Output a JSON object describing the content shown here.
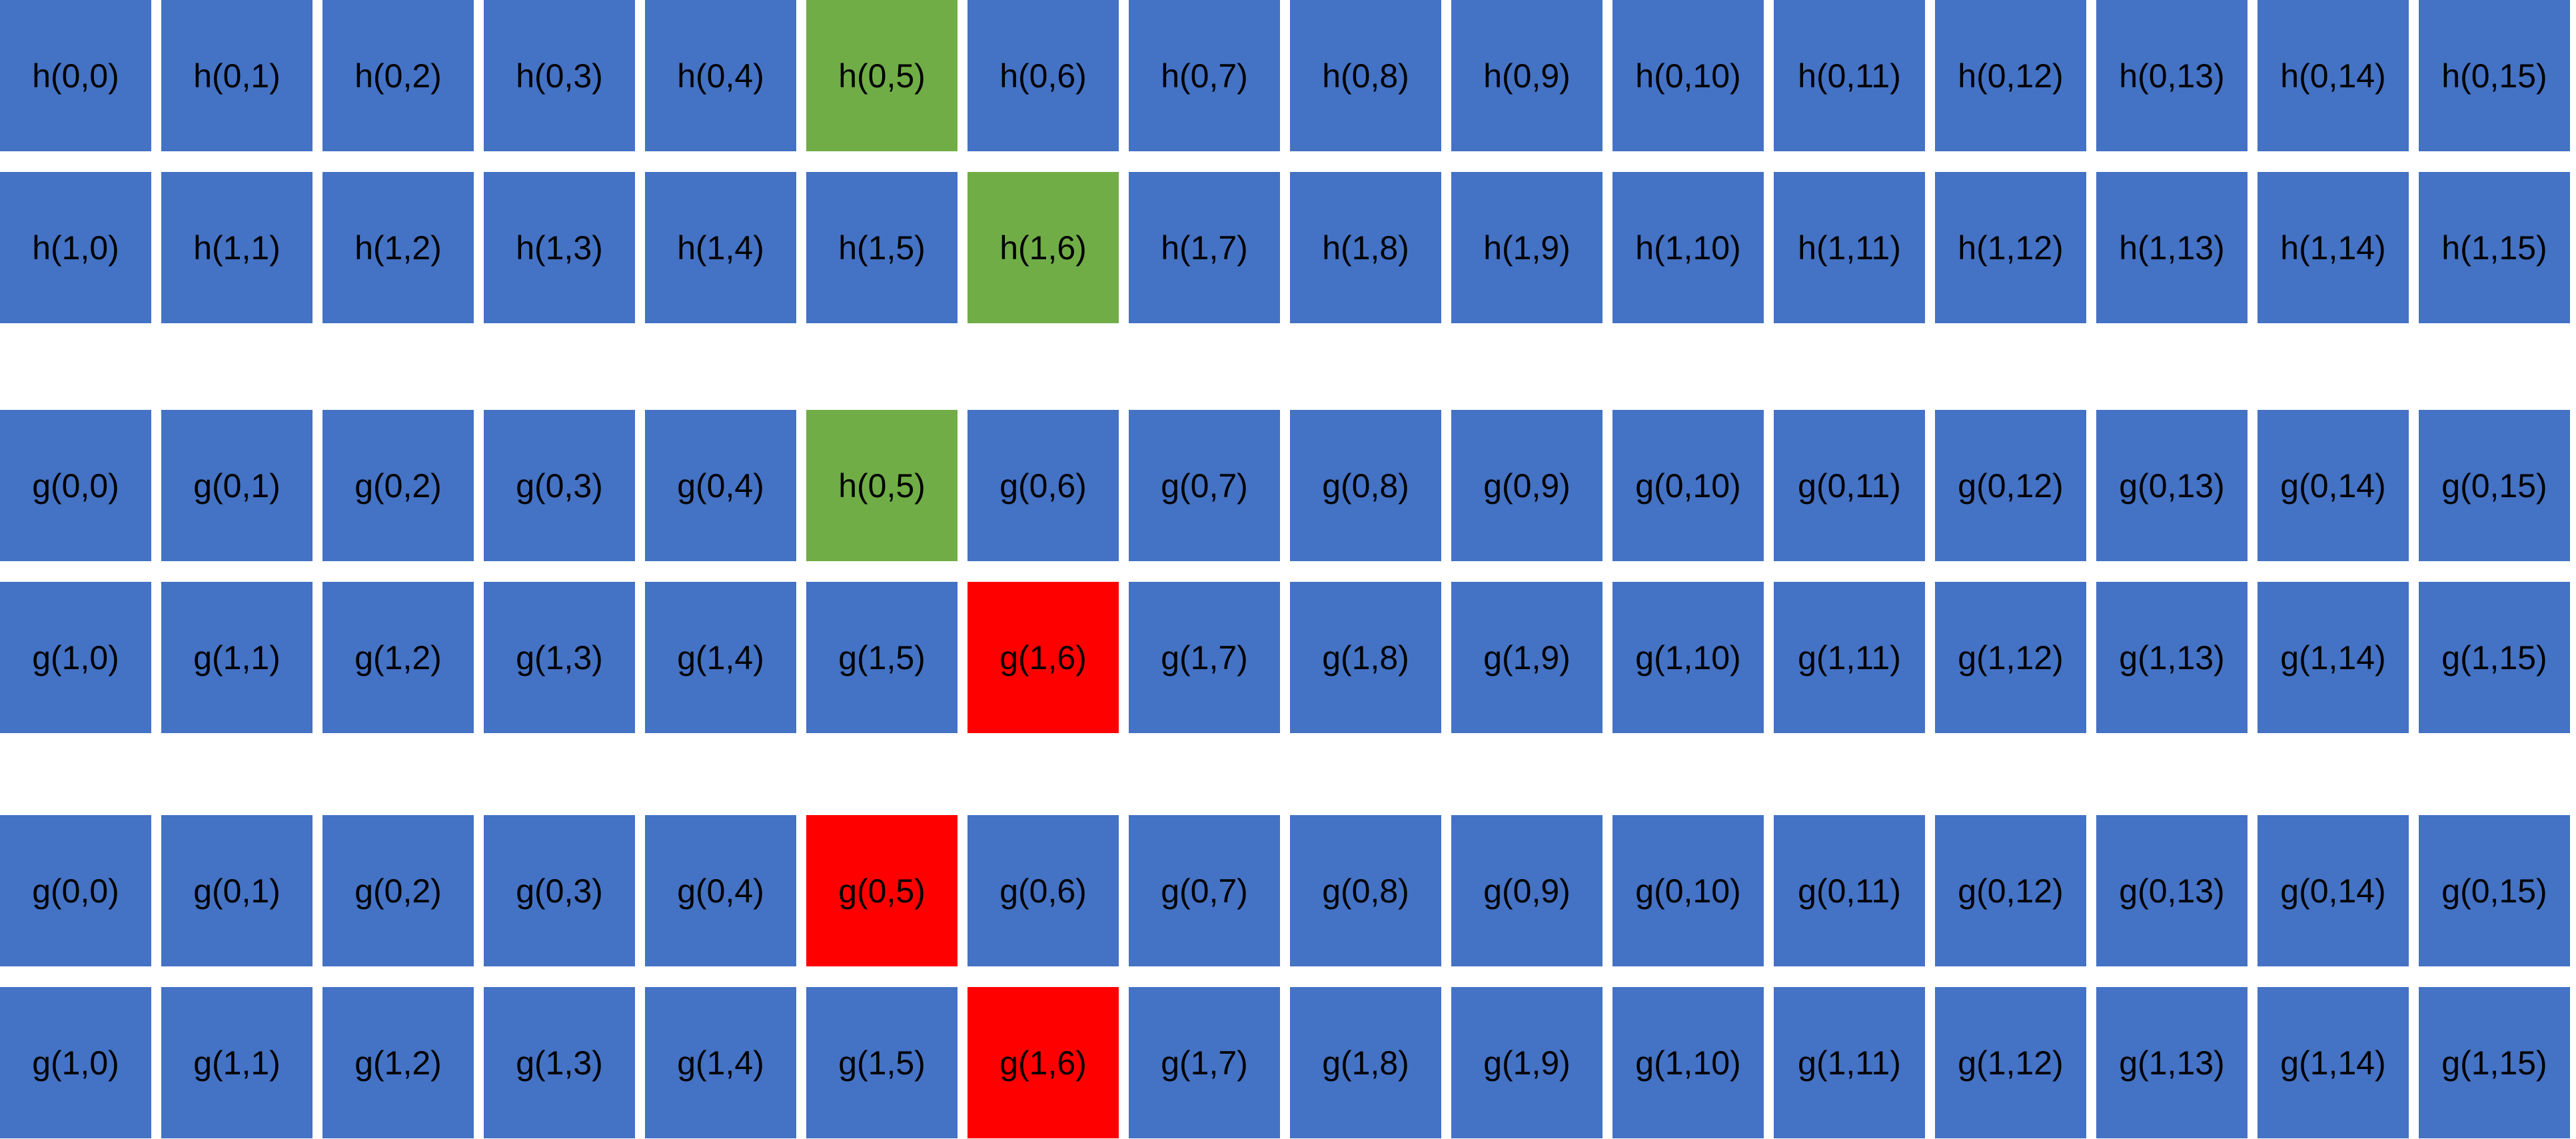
{
  "colors": {
    "default": "#4472C4",
    "green": "#70AD47",
    "red": "#FF0000",
    "text": "#000000",
    "background": "#FFFFFF"
  },
  "blocks": [
    {
      "rows": [
        {
          "cells": [
            {
              "label": "h(0,0)",
              "color": "default"
            },
            {
              "label": "h(0,1)",
              "color": "default"
            },
            {
              "label": "h(0,2)",
              "color": "default"
            },
            {
              "label": "h(0,3)",
              "color": "default"
            },
            {
              "label": "h(0,4)",
              "color": "default"
            },
            {
              "label": "h(0,5)",
              "color": "green"
            },
            {
              "label": "h(0,6)",
              "color": "default"
            },
            {
              "label": "h(0,7)",
              "color": "default"
            },
            {
              "label": "h(0,8)",
              "color": "default"
            },
            {
              "label": "h(0,9)",
              "color": "default"
            },
            {
              "label": "h(0,10)",
              "color": "default"
            },
            {
              "label": "h(0,11)",
              "color": "default"
            },
            {
              "label": "h(0,12)",
              "color": "default"
            },
            {
              "label": "h(0,13)",
              "color": "default"
            },
            {
              "label": "h(0,14)",
              "color": "default"
            },
            {
              "label": "h(0,15)",
              "color": "default"
            }
          ]
        },
        {
          "cells": [
            {
              "label": "h(1,0)",
              "color": "default"
            },
            {
              "label": "h(1,1)",
              "color": "default"
            },
            {
              "label": "h(1,2)",
              "color": "default"
            },
            {
              "label": "h(1,3)",
              "color": "default"
            },
            {
              "label": "h(1,4)",
              "color": "default"
            },
            {
              "label": "h(1,5)",
              "color": "default"
            },
            {
              "label": "h(1,6)",
              "color": "green"
            },
            {
              "label": "h(1,7)",
              "color": "default"
            },
            {
              "label": "h(1,8)",
              "color": "default"
            },
            {
              "label": "h(1,9)",
              "color": "default"
            },
            {
              "label": "h(1,10)",
              "color": "default"
            },
            {
              "label": "h(1,11)",
              "color": "default"
            },
            {
              "label": "h(1,12)",
              "color": "default"
            },
            {
              "label": "h(1,13)",
              "color": "default"
            },
            {
              "label": "h(1,14)",
              "color": "default"
            },
            {
              "label": "h(1,15)",
              "color": "default"
            }
          ]
        }
      ]
    },
    {
      "rows": [
        {
          "cells": [
            {
              "label": "g(0,0)",
              "color": "default"
            },
            {
              "label": "g(0,1)",
              "color": "default"
            },
            {
              "label": "g(0,2)",
              "color": "default"
            },
            {
              "label": "g(0,3)",
              "color": "default"
            },
            {
              "label": "g(0,4)",
              "color": "default"
            },
            {
              "label": "h(0,5)",
              "color": "green"
            },
            {
              "label": "g(0,6)",
              "color": "default"
            },
            {
              "label": "g(0,7)",
              "color": "default"
            },
            {
              "label": "g(0,8)",
              "color": "default"
            },
            {
              "label": "g(0,9)",
              "color": "default"
            },
            {
              "label": "g(0,10)",
              "color": "default"
            },
            {
              "label": "g(0,11)",
              "color": "default"
            },
            {
              "label": "g(0,12)",
              "color": "default"
            },
            {
              "label": "g(0,13)",
              "color": "default"
            },
            {
              "label": "g(0,14)",
              "color": "default"
            },
            {
              "label": "g(0,15)",
              "color": "default"
            }
          ]
        },
        {
          "cells": [
            {
              "label": "g(1,0)",
              "color": "default"
            },
            {
              "label": "g(1,1)",
              "color": "default"
            },
            {
              "label": "g(1,2)",
              "color": "default"
            },
            {
              "label": "g(1,3)",
              "color": "default"
            },
            {
              "label": "g(1,4)",
              "color": "default"
            },
            {
              "label": "g(1,5)",
              "color": "default"
            },
            {
              "label": "g(1,6)",
              "color": "red"
            },
            {
              "label": "g(1,7)",
              "color": "default"
            },
            {
              "label": "g(1,8)",
              "color": "default"
            },
            {
              "label": "g(1,9)",
              "color": "default"
            },
            {
              "label": "g(1,10)",
              "color": "default"
            },
            {
              "label": "g(1,11)",
              "color": "default"
            },
            {
              "label": "g(1,12)",
              "color": "default"
            },
            {
              "label": "g(1,13)",
              "color": "default"
            },
            {
              "label": "g(1,14)",
              "color": "default"
            },
            {
              "label": "g(1,15)",
              "color": "default"
            }
          ]
        }
      ]
    },
    {
      "rows": [
        {
          "cells": [
            {
              "label": "g(0,0)",
              "color": "default"
            },
            {
              "label": "g(0,1)",
              "color": "default"
            },
            {
              "label": "g(0,2)",
              "color": "default"
            },
            {
              "label": "g(0,3)",
              "color": "default"
            },
            {
              "label": "g(0,4)",
              "color": "default"
            },
            {
              "label": "g(0,5)",
              "color": "red"
            },
            {
              "label": "g(0,6)",
              "color": "default"
            },
            {
              "label": "g(0,7)",
              "color": "default"
            },
            {
              "label": "g(0,8)",
              "color": "default"
            },
            {
              "label": "g(0,9)",
              "color": "default"
            },
            {
              "label": "g(0,10)",
              "color": "default"
            },
            {
              "label": "g(0,11)",
              "color": "default"
            },
            {
              "label": "g(0,12)",
              "color": "default"
            },
            {
              "label": "g(0,13)",
              "color": "default"
            },
            {
              "label": "g(0,14)",
              "color": "default"
            },
            {
              "label": "g(0,15)",
              "color": "default"
            }
          ]
        },
        {
          "cells": [
            {
              "label": "g(1,0)",
              "color": "default"
            },
            {
              "label": "g(1,1)",
              "color": "default"
            },
            {
              "label": "g(1,2)",
              "color": "default"
            },
            {
              "label": "g(1,3)",
              "color": "default"
            },
            {
              "label": "g(1,4)",
              "color": "default"
            },
            {
              "label": "g(1,5)",
              "color": "default"
            },
            {
              "label": "g(1,6)",
              "color": "red"
            },
            {
              "label": "g(1,7)",
              "color": "default"
            },
            {
              "label": "g(1,8)",
              "color": "default"
            },
            {
              "label": "g(1,9)",
              "color": "default"
            },
            {
              "label": "g(1,10)",
              "color": "default"
            },
            {
              "label": "g(1,11)",
              "color": "default"
            },
            {
              "label": "g(1,12)",
              "color": "default"
            },
            {
              "label": "g(1,13)",
              "color": "default"
            },
            {
              "label": "g(1,14)",
              "color": "default"
            },
            {
              "label": "g(1,15)",
              "color": "default"
            }
          ]
        }
      ]
    }
  ]
}
